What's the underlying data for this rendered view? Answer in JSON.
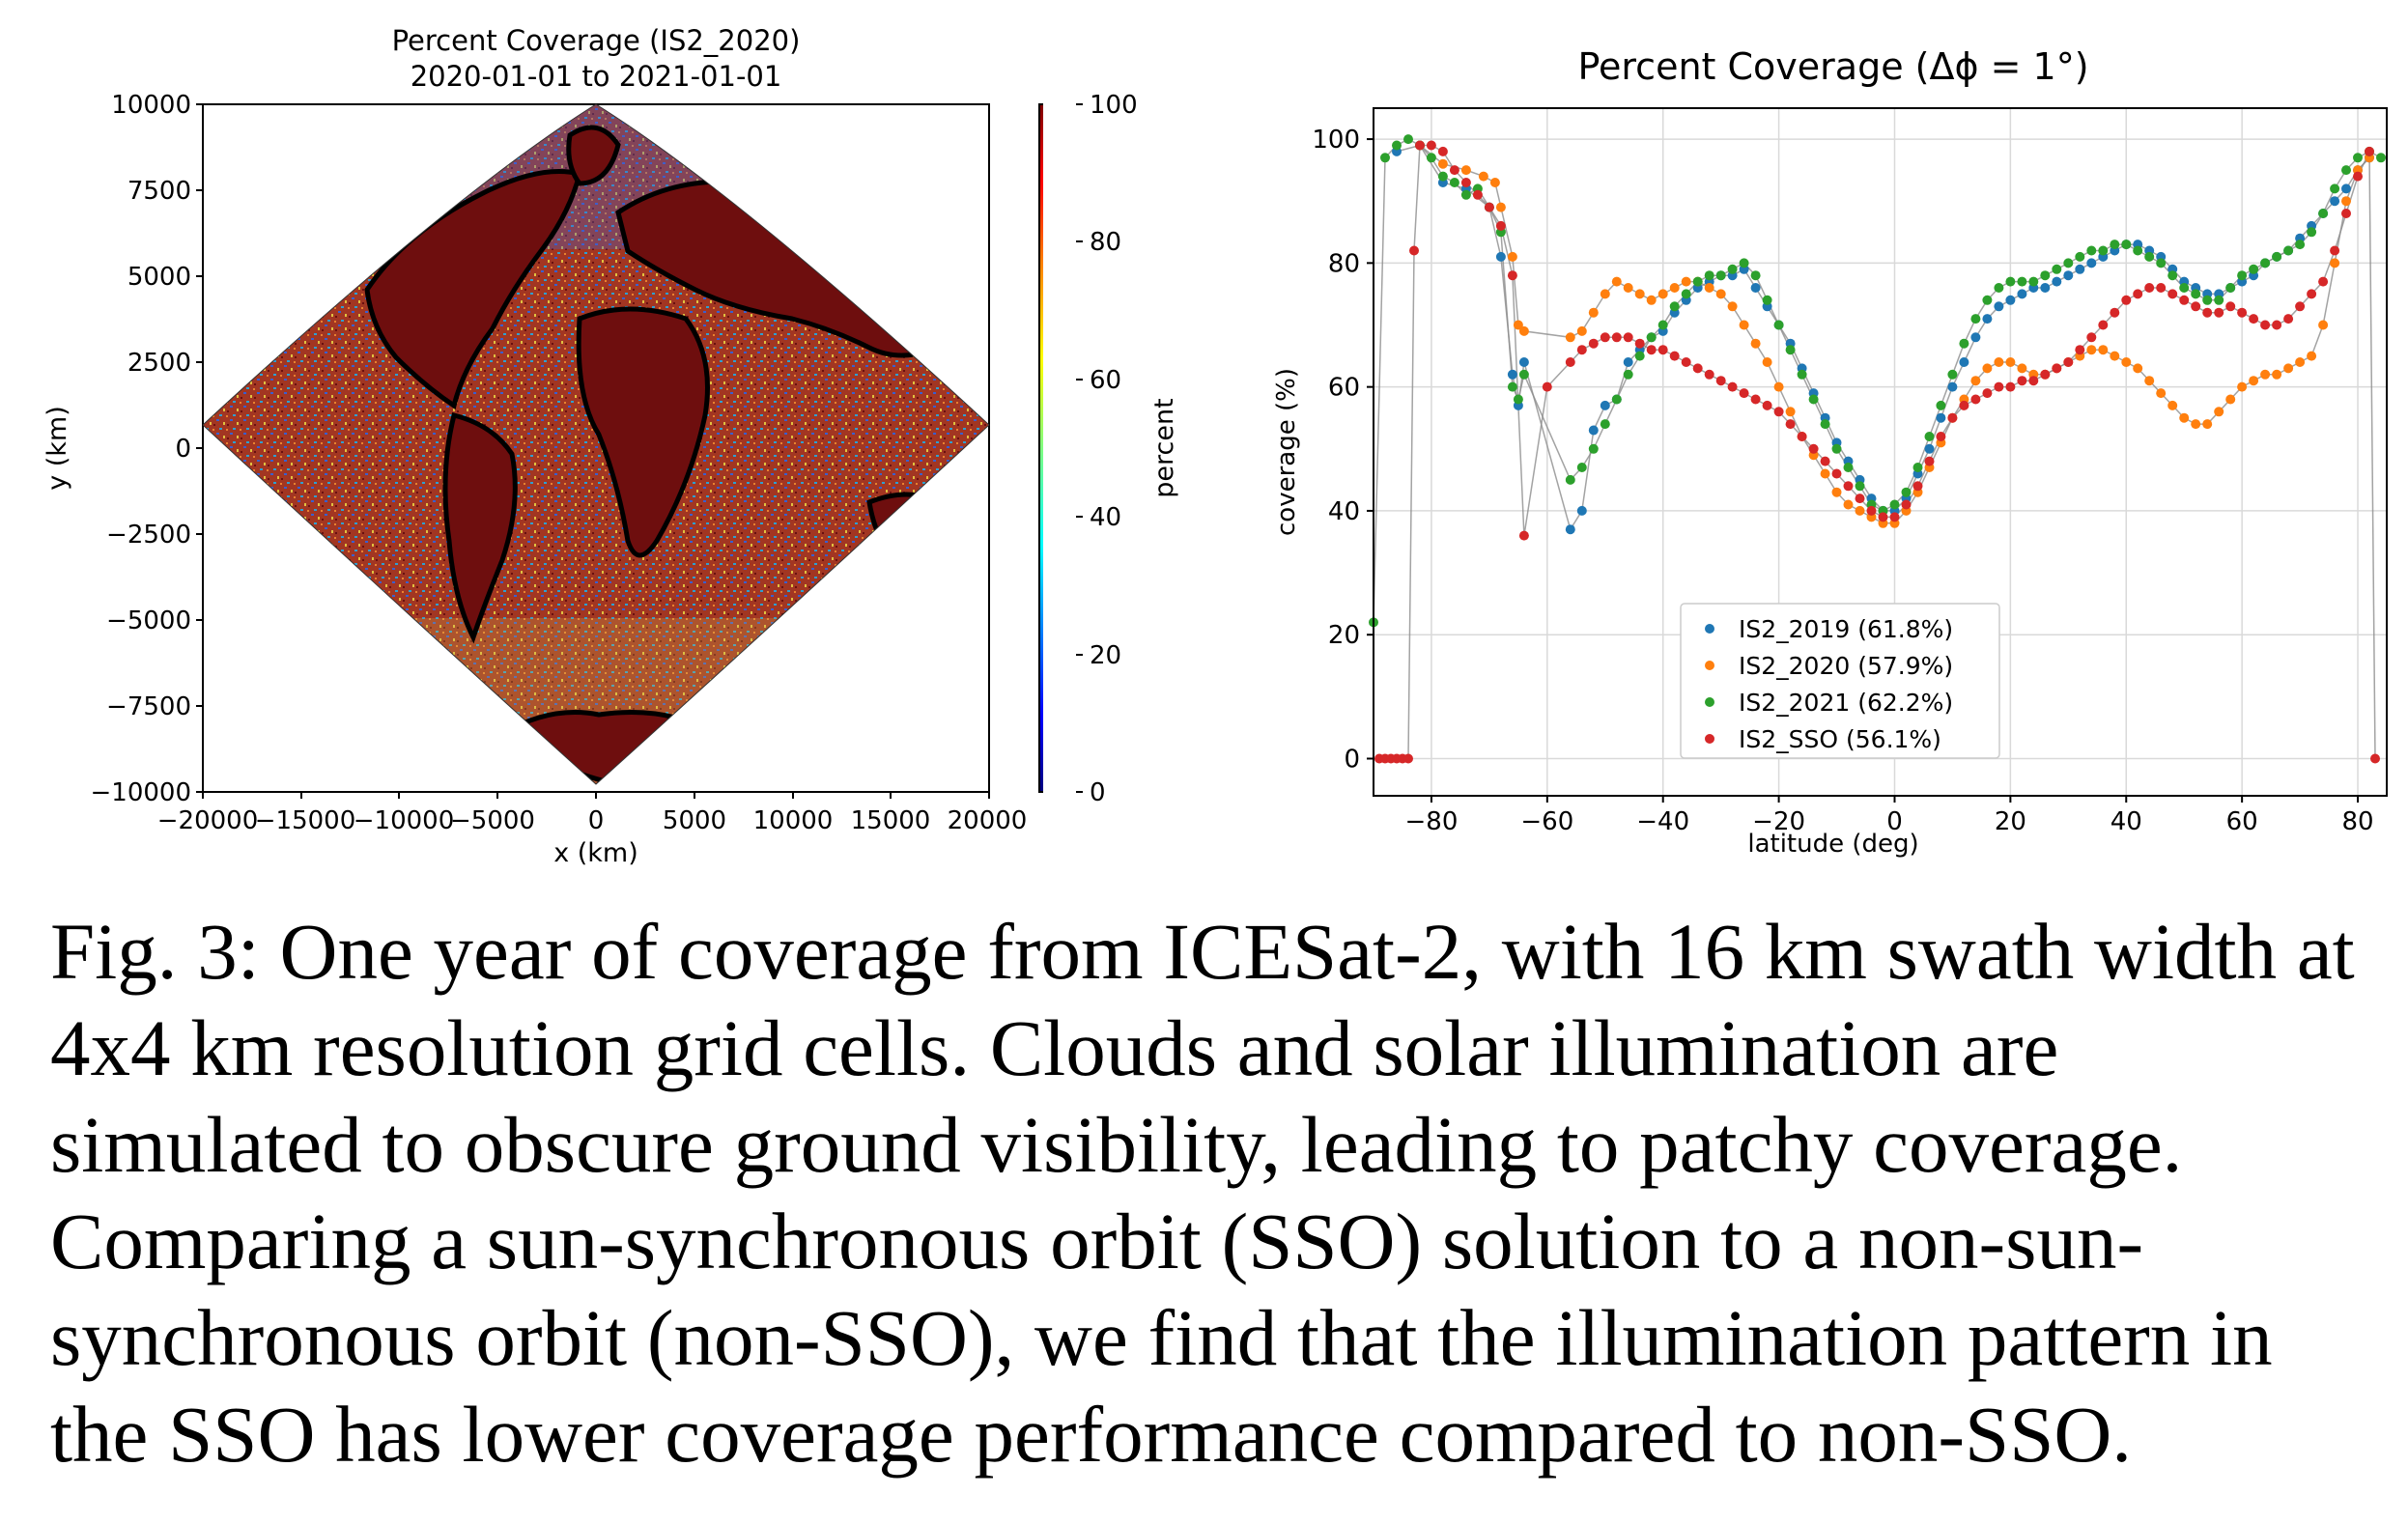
{
  "left_figure": {
    "title_line1": "Percent Coverage (IS2_2020)",
    "title_line2": "2020-01-01 to 2021-01-01",
    "xlabel": "x (km)",
    "ylabel": "y (km)",
    "xticks": [
      "−20000",
      "−15000",
      "−10000",
      "−5000",
      "0",
      "5000",
      "10000",
      "15000",
      "20000"
    ],
    "yticks": [
      "10000",
      "7500",
      "5000",
      "2500",
      "0",
      "−2500",
      "−5000",
      "−7500",
      "−10000"
    ],
    "colorbar": {
      "label": "percent",
      "ticks": [
        "100",
        "80",
        "60",
        "40",
        "20",
        "0"
      ],
      "colors": [
        "#00007f",
        "#0000ff",
        "#007fff",
        "#00ffff",
        "#7fff7f",
        "#ffff00",
        "#ff7f00",
        "#ff0000",
        "#7f0000"
      ]
    },
    "map_colors": {
      "ocean": "#a0341e",
      "land": "#6e0e0e",
      "coast": "#000000"
    }
  },
  "chart_data": {
    "type": "scatter",
    "title": "Percent Coverage (Δϕ = 1°)",
    "xlabel": "latitude (deg)",
    "ylabel": "coverage (%)",
    "xlim": [
      -90,
      85
    ],
    "ylim": [
      -6,
      105
    ],
    "xticks": [
      -80,
      -60,
      -40,
      -20,
      0,
      20,
      40,
      60,
      80
    ],
    "yticks": [
      0,
      20,
      40,
      60,
      80,
      100
    ],
    "grid": true,
    "legend_position": "lower-center",
    "series": [
      {
        "name": "IS2_2019 (61.8%)",
        "color": "#1f77b4",
        "x": [
          -86,
          -82,
          -78,
          -74,
          -70,
          -68,
          -66,
          -65,
          -64,
          -56,
          -54,
          -52,
          -50,
          -48,
          -46,
          -44,
          -42,
          -40,
          -38,
          -36,
          -34,
          -32,
          -30,
          -28,
          -26,
          -24,
          -22,
          -20,
          -18,
          -16,
          -14,
          -12,
          -10,
          -8,
          -6,
          -4,
          -2,
          0,
          2,
          4,
          6,
          8,
          10,
          12,
          14,
          16,
          18,
          20,
          22,
          24,
          26,
          28,
          30,
          32,
          34,
          36,
          38,
          40,
          42,
          44,
          46,
          48,
          50,
          52,
          54,
          56,
          58,
          60,
          62,
          64,
          66,
          68,
          70,
          72,
          74,
          76,
          78,
          80,
          82
        ],
        "y": [
          98,
          99,
          93,
          92,
          89,
          81,
          62,
          57,
          64,
          37,
          40,
          53,
          57,
          58,
          64,
          66,
          68,
          69,
          72,
          74,
          76,
          77,
          78,
          78,
          79,
          76,
          73,
          70,
          67,
          63,
          59,
          55,
          51,
          48,
          45,
          42,
          40,
          40,
          42,
          46,
          50,
          55,
          60,
          64,
          68,
          71,
          73,
          74,
          75,
          76,
          76,
          77,
          78,
          79,
          80,
          81,
          82,
          83,
          83,
          82,
          81,
          79,
          77,
          76,
          75,
          75,
          76,
          77,
          78,
          80,
          81,
          82,
          84,
          86,
          88,
          90,
          92,
          95,
          97
        ]
      },
      {
        "name": "IS2_2020 (57.9%)",
        "color": "#ff7f0e",
        "x": [
          -82,
          -78,
          -74,
          -71,
          -69,
          -68,
          -66,
          -65,
          -64,
          -56,
          -54,
          -52,
          -50,
          -48,
          -46,
          -44,
          -42,
          -40,
          -38,
          -36,
          -34,
          -32,
          -30,
          -28,
          -26,
          -24,
          -22,
          -20,
          -18,
          -16,
          -14,
          -12,
          -10,
          -8,
          -6,
          -4,
          -2,
          0,
          2,
          4,
          6,
          8,
          10,
          12,
          14,
          16,
          18,
          20,
          22,
          24,
          26,
          28,
          30,
          32,
          34,
          36,
          38,
          40,
          42,
          44,
          46,
          48,
          50,
          52,
          54,
          56,
          58,
          60,
          62,
          64,
          66,
          68,
          70,
          72,
          74,
          76,
          78,
          80,
          82
        ],
        "y": [
          99,
          96,
          95,
          94,
          93,
          89,
          81,
          70,
          69,
          68,
          69,
          72,
          75,
          77,
          76,
          75,
          74,
          75,
          76,
          77,
          77,
          76,
          75,
          73,
          70,
          67,
          64,
          60,
          56,
          52,
          49,
          46,
          43,
          41,
          40,
          39,
          38,
          38,
          40,
          43,
          47,
          51,
          55,
          58,
          61,
          63,
          64,
          64,
          63,
          62,
          62,
          63,
          64,
          65,
          66,
          66,
          65,
          64,
          63,
          61,
          59,
          57,
          55,
          54,
          54,
          56,
          58,
          60,
          61,
          62,
          62,
          63,
          64,
          65,
          70,
          80,
          90,
          95,
          97
        ]
      },
      {
        "name": "IS2_2021 (62.2%)",
        "color": "#2ca02c",
        "x": [
          -90,
          -88,
          -86,
          -84,
          -82,
          -80,
          -78,
          -76,
          -74,
          -72,
          -70,
          -68,
          -66,
          -65,
          -64,
          -56,
          -54,
          -52,
          -50,
          -48,
          -46,
          -44,
          -42,
          -40,
          -38,
          -36,
          -34,
          -32,
          -30,
          -28,
          -26,
          -24,
          -22,
          -20,
          -18,
          -16,
          -14,
          -12,
          -10,
          -8,
          -6,
          -4,
          -2,
          0,
          2,
          4,
          6,
          8,
          10,
          12,
          14,
          16,
          18,
          20,
          22,
          24,
          26,
          28,
          30,
          32,
          34,
          36,
          38,
          40,
          42,
          44,
          46,
          48,
          50,
          52,
          54,
          56,
          58,
          60,
          62,
          64,
          66,
          68,
          70,
          72,
          74,
          76,
          78,
          80,
          82,
          84
        ],
        "y": [
          22,
          97,
          99,
          100,
          99,
          97,
          94,
          93,
          91,
          92,
          89,
          85,
          60,
          58,
          62,
          45,
          47,
          50,
          54,
          58,
          62,
          65,
          68,
          70,
          73,
          75,
          77,
          78,
          78,
          79,
          80,
          78,
          74,
          70,
          66,
          62,
          58,
          54,
          50,
          47,
          44,
          41,
          40,
          41,
          43,
          47,
          52,
          57,
          62,
          67,
          71,
          74,
          76,
          77,
          77,
          77,
          78,
          79,
          80,
          81,
          82,
          82,
          83,
          83,
          82,
          81,
          80,
          78,
          76,
          75,
          74,
          74,
          76,
          78,
          79,
          80,
          81,
          82,
          83,
          85,
          88,
          92,
          95,
          97,
          98,
          97
        ]
      },
      {
        "name": "IS2_SSO (56.1%)",
        "color": "#d62728",
        "x": [
          -89,
          -88,
          -87,
          -86,
          -85,
          -84,
          -83,
          -82,
          -80,
          -78,
          -76,
          -74,
          -72,
          -70,
          -68,
          -66,
          -64,
          -60,
          -56,
          -54,
          -52,
          -50,
          -48,
          -46,
          -44,
          -42,
          -40,
          -38,
          -36,
          -34,
          -32,
          -30,
          -28,
          -26,
          -24,
          -22,
          -20,
          -18,
          -16,
          -14,
          -12,
          -10,
          -8,
          -6,
          -4,
          -2,
          0,
          2,
          4,
          6,
          8,
          10,
          12,
          14,
          16,
          18,
          20,
          22,
          24,
          26,
          28,
          30,
          32,
          34,
          36,
          38,
          40,
          42,
          44,
          46,
          48,
          50,
          52,
          54,
          56,
          58,
          60,
          62,
          64,
          66,
          68,
          70,
          72,
          74,
          76,
          78,
          80,
          82,
          83
        ],
        "y": [
          0,
          0,
          0,
          0,
          0,
          0,
          82,
          99,
          99,
          98,
          95,
          93,
          91,
          89,
          86,
          78,
          36,
          60,
          64,
          66,
          67,
          68,
          68,
          68,
          67,
          66,
          66,
          65,
          64,
          63,
          62,
          61,
          60,
          59,
          58,
          57,
          56,
          54,
          52,
          50,
          48,
          46,
          44,
          42,
          40,
          39,
          39,
          41,
          44,
          48,
          52,
          55,
          57,
          58,
          59,
          60,
          60,
          61,
          61,
          62,
          63,
          64,
          66,
          68,
          70,
          72,
          74,
          75,
          76,
          76,
          75,
          74,
          73,
          72,
          72,
          73,
          72,
          71,
          70,
          70,
          71,
          73,
          75,
          77,
          82,
          88,
          94,
          98,
          0
        ]
      }
    ],
    "legend": [
      "IS2_2019 (61.8%)",
      "IS2_2020 (57.9%)",
      "IS2_2021 (62.2%)",
      "IS2_SSO (56.1%)"
    ]
  },
  "caption": "Fig. 3: One year of coverage from ICESat-2, with 16 km swath width at 4x4 km resolution grid cells. Clouds and solar illumination are simulated to obscure ground visibility, leading to patchy coverage. Comparing a sun-synchronous orbit (SSO) solution to a non-sun-synchronous orbit (non-SSO), we find that the illumination pattern in the SSO has lower coverage performance compared to non-SSO."
}
